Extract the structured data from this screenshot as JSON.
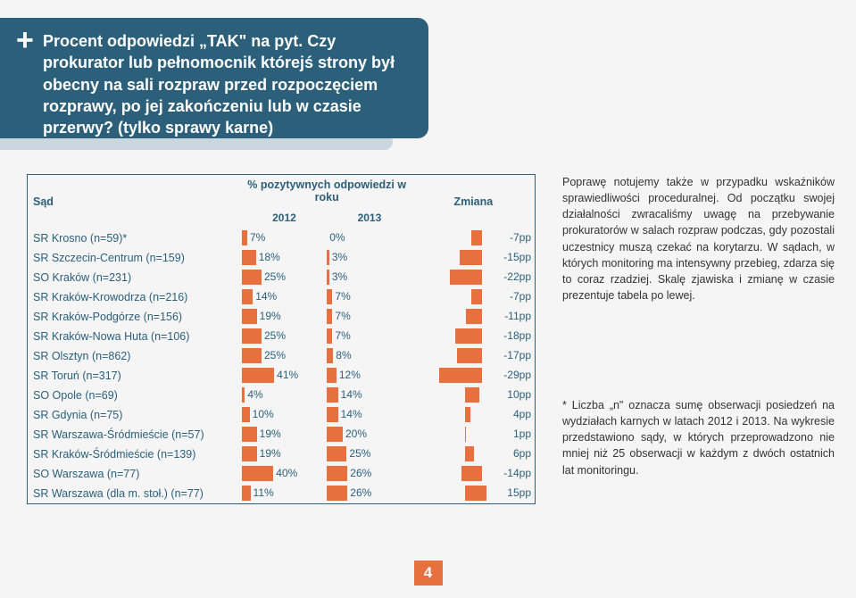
{
  "header": {
    "plus": "+",
    "title": "Procent odpowiedzi „TAK\" na pyt. Czy prokurator lub pełnomocnik którejś strony był obecny na sali rozpraw przed rozpoczęciem rozprawy, po jej zakończeniu lub w czasie przerwy? (tylko sprawy karne)"
  },
  "table": {
    "col_court": "Sąd",
    "col_percent": "% pozytywnych odpowiedzi w roku",
    "col_2012": "2012",
    "col_2013": "2013",
    "col_change": "Zmiana",
    "bar_color": "#e8703f",
    "max_pct": 60,
    "max_change": 30,
    "rows": [
      {
        "court": "SR Krosno (n=59)*",
        "v2012": 7,
        "v2013": 0,
        "change": -7,
        "label": "-7pp"
      },
      {
        "court": "SR Szczecin-Centrum (n=159)",
        "v2012": 18,
        "v2013": 3,
        "change": -15,
        "label": "-15pp"
      },
      {
        "court": "SO Kraków (n=231)",
        "v2012": 25,
        "v2013": 3,
        "change": -22,
        "label": "-22pp"
      },
      {
        "court": "SR Kraków-Krowodrza (n=216)",
        "v2012": 14,
        "v2013": 7,
        "change": -7,
        "label": "-7pp"
      },
      {
        "court": "SR Kraków-Podgórze (n=156)",
        "v2012": 19,
        "v2013": 7,
        "change": -11,
        "label": "-11pp"
      },
      {
        "court": "SR Kraków-Nowa Huta (n=106)",
        "v2012": 25,
        "v2013": 7,
        "change": -18,
        "label": "-18pp"
      },
      {
        "court": "SR Olsztyn (n=862)",
        "v2012": 25,
        "v2013": 8,
        "change": -17,
        "label": "-17pp"
      },
      {
        "court": "SR Toruń (n=317)",
        "v2012": 41,
        "v2013": 12,
        "change": -29,
        "label": "-29pp"
      },
      {
        "court": "SO Opole (n=69)",
        "v2012": 4,
        "v2013": 14,
        "change": 10,
        "label": "10pp"
      },
      {
        "court": "SR Gdynia (n=75)",
        "v2012": 10,
        "v2013": 14,
        "change": 4,
        "label": "4pp"
      },
      {
        "court": "SR Warszawa-Śródmieście (n=57)",
        "v2012": 19,
        "v2013": 20,
        "change": 1,
        "label": "1pp"
      },
      {
        "court": "SR Kraków-Śródmieście (n=139)",
        "v2012": 19,
        "v2013": 25,
        "change": 6,
        "label": "6pp"
      },
      {
        "court": "SO Warszawa (n=77)",
        "v2012": 40,
        "v2013": 26,
        "change": -14,
        "label": "-14pp"
      },
      {
        "court": "SR Warszawa (dla m. stoł.) (n=77)",
        "v2012": 11,
        "v2013": 26,
        "change": 15,
        "label": "15pp"
      }
    ]
  },
  "right": {
    "p1": "Poprawę notujemy także w przypadku wskaźników sprawiedliwości proceduralnej. Od początku swojej działalności zwracaliśmy uwagę na przebywanie prokuratorów w salach rozpraw podczas, gdy pozostali uczestnicy muszą czekać na korytarzu. W sądach, w których monitoring ma intensywny przebieg, zdarza się to coraz rzadziej. Skalę zjawiska i zmianę w czasie prezentuje tabela po lewej.",
    "footnote": "* Liczba „n\" oznacza sumę obserwacji posiedzeń na wydziałach karnych w latach 2012 i 2013. Na wykresie przedstawiono sądy, w których przeprowadzono nie mniej niż 25 obserwacji w każdym z dwóch ostatnich lat monitoringu."
  },
  "page_number": "4"
}
